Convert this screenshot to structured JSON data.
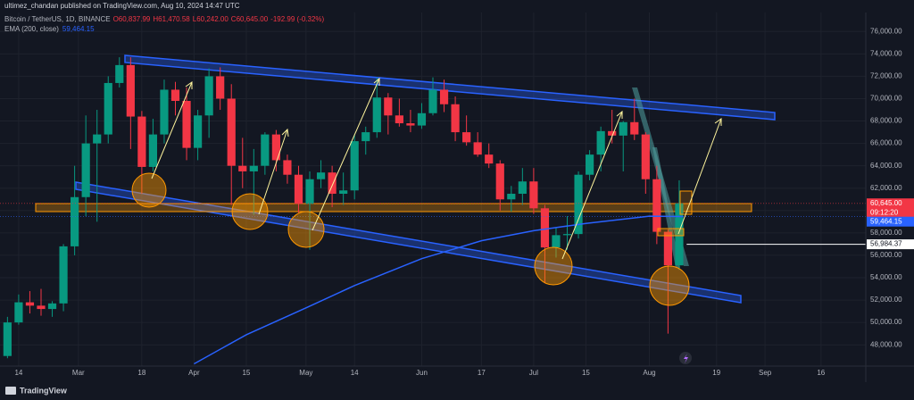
{
  "header": "ultimez_chandan published on TradingView.com, Aug 10, 2024 14:47 UTC",
  "chart_data": {
    "type": "candlestick",
    "legend": {
      "symbol": "Bitcoin / TetherUS, 1D, BINANCE",
      "ohlc": [
        "O60,837.99",
        "H61,470.58",
        "L60,242.00",
        "C60,645.00",
        "-192.99 (-0.32%)"
      ]
    },
    "x": [
      "Feb 10",
      "Feb 13",
      "Feb 16",
      "Feb 19",
      "Feb 22",
      "Feb 25",
      "Feb 28",
      "Mar 2",
      "Mar 5",
      "Mar 8",
      "Mar 11",
      "Mar 14",
      "Mar 17",
      "Mar 20",
      "Mar 23",
      "Mar 26",
      "Mar 29",
      "Apr 1",
      "Apr 4",
      "Apr 7",
      "Apr 10",
      "Apr 13",
      "Apr 16",
      "Apr 19",
      "Apr 22",
      "Apr 25",
      "Apr 28",
      "May 1",
      "May 4",
      "May 7",
      "May 10",
      "May 13",
      "May 16",
      "May 19",
      "May 22",
      "May 25",
      "May 28",
      "May 31",
      "Jun 3",
      "Jun 6",
      "Jun 9",
      "Jun 12",
      "Jun 15",
      "Jun 18",
      "Jun 21",
      "Jun 24",
      "Jun 27",
      "Jun 30",
      "Jul 3",
      "Jul 6",
      "Jul 9",
      "Jul 12",
      "Jul 15",
      "Jul 18",
      "Jul 21",
      "Jul 24",
      "Jul 27",
      "Jul 30",
      "Aug 2",
      "Aug 5",
      "Aug 8"
    ],
    "open": [
      47000,
      50000,
      51800,
      51500,
      51200,
      51700,
      56800,
      61200,
      66000,
      66800,
      71400,
      73000,
      68400,
      63900,
      66800,
      70800,
      69800,
      65600,
      68500,
      72000,
      70000,
      64000,
      63500,
      64000,
      66800,
      64500,
      63200,
      60600,
      62800,
      63400,
      61500,
      61800,
      66200,
      67000,
      70100,
      68500,
      67800,
      67600,
      68700,
      70800,
      69500,
      67000,
      66100,
      65000,
      64200,
      61000,
      61500,
      62600,
      60200,
      56700,
      57800,
      57900,
      63200,
      65000,
      67100,
      66700,
      67900,
      66800,
      62800,
      58100,
      55100
    ],
    "high": [
      50500,
      52500,
      52800,
      53000,
      51900,
      57000,
      64000,
      68500,
      69000,
      72000,
      73700,
      73700,
      68900,
      68200,
      71700,
      71500,
      71000,
      69000,
      72700,
      72800,
      71300,
      66500,
      65500,
      67000,
      67200,
      65000,
      64000,
      63500,
      64500,
      64000,
      63400,
      66800,
      67500,
      71900,
      70500,
      70000,
      69000,
      69600,
      71900,
      71700,
      70200,
      68500,
      67000,
      66000,
      64500,
      62200,
      63800,
      63800,
      60500,
      58500,
      59500,
      63500,
      65400,
      67500,
      69000,
      68000,
      70000,
      67000,
      64000,
      58300,
      62700
    ],
    "low": [
      46800,
      49800,
      50800,
      50600,
      50500,
      51000,
      56000,
      59500,
      59000,
      66000,
      71000,
      65500,
      61500,
      63500,
      66000,
      68500,
      64500,
      64500,
      66500,
      69000,
      60500,
      62000,
      59600,
      63200,
      63500,
      62400,
      59800,
      56500,
      62000,
      60300,
      60500,
      61000,
      65000,
      66500,
      66800,
      67500,
      67000,
      67300,
      68500,
      68800,
      66200,
      65800,
      64800,
      63800,
      60000,
      59900,
      60500,
      59700,
      53500,
      55800,
      56500,
      57500,
      62700,
      63500,
      66000,
      63500,
      66300,
      61500,
      57000,
      49000,
      54700
    ],
    "close": [
      50000,
      51800,
      51500,
      51200,
      51700,
      56800,
      61200,
      66000,
      66800,
      71400,
      73000,
      68400,
      63900,
      66800,
      70800,
      69800,
      65600,
      68500,
      72000,
      70000,
      64000,
      63500,
      64000,
      66800,
      64500,
      63200,
      60600,
      62800,
      63400,
      61500,
      61800,
      66200,
      67000,
      70100,
      68500,
      67800,
      67600,
      68700,
      70800,
      69500,
      67000,
      66100,
      65000,
      64200,
      61000,
      61500,
      62600,
      60200,
      56700,
      57800,
      57900,
      63200,
      65000,
      67100,
      66700,
      67900,
      66800,
      62800,
      58100,
      55100,
      60645
    ],
    "up_color": "#089981",
    "down_color": "#f23645",
    "ema": {
      "name": "EMA (200, close)",
      "color": "#2962ff",
      "x": [
        "Apr 1",
        "Apr 15",
        "May 1",
        "May 14",
        "Jun 1",
        "Jun 17",
        "Jul 1",
        "Jul 15",
        "Aug 1",
        "Aug 10"
      ],
      "values": [
        46300,
        48900,
        51300,
        53300,
        55700,
        57300,
        58200,
        58850,
        59500,
        59464.15
      ]
    },
    "xlim": [
      "Feb 9",
      "Sep 28"
    ],
    "xticks": [
      {
        "value": "Feb 14",
        "label": "14"
      },
      {
        "value": "Mar 1",
        "label": "Mar"
      },
      {
        "value": "Mar 18",
        "label": "18"
      },
      {
        "value": "Apr 1",
        "label": "Apr"
      },
      {
        "value": "Apr 15",
        "label": "15"
      },
      {
        "value": "May 1",
        "label": "May"
      },
      {
        "value": "May 14",
        "label": "14"
      },
      {
        "value": "Jun 1",
        "label": "Jun"
      },
      {
        "value": "Jun 17",
        "label": "17"
      },
      {
        "value": "Jul 1",
        "label": "Jul"
      },
      {
        "value": "Jul 15",
        "label": "15"
      },
      {
        "value": "Aug 1",
        "label": "Aug"
      },
      {
        "value": "Aug 19",
        "label": "19"
      },
      {
        "value": "Sep 1",
        "label": "Sep"
      },
      {
        "value": "Sep 16",
        "label": "16"
      }
    ],
    "ylim": [
      46100,
      77700
    ],
    "yticks": [
      {
        "value": 48000,
        "label": "48,000.00"
      },
      {
        "value": 50000,
        "label": "50,000.00"
      },
      {
        "value": 52000,
        "label": "52,000.00"
      },
      {
        "value": 54000,
        "label": "54,000.00"
      },
      {
        "value": 56000,
        "label": "56,000.00"
      },
      {
        "value": 58000,
        "label": "58,000.00"
      },
      {
        "value": 60000,
        "label": "60,000.00"
      },
      {
        "value": 62000,
        "label": "62,000.00"
      },
      {
        "value": 64000,
        "label": "64,000.00"
      },
      {
        "value": 66000,
        "label": "66,000.00"
      },
      {
        "value": 68000,
        "label": "68,000.00"
      },
      {
        "value": 70000,
        "label": "70,000.00"
      },
      {
        "value": 72000,
        "label": "72,000.00"
      },
      {
        "value": 74000,
        "label": "74,000.00"
      },
      {
        "value": 76000,
        "label": "76,000.00"
      }
    ],
    "grid": true,
    "price_labels": [
      {
        "value": 60645,
        "label": "60,645.00",
        "color": "#f23645"
      },
      {
        "value": 59464.15,
        "label": "59,464.15",
        "color": "#2962ff"
      },
      {
        "value": 56984.37,
        "label": "56,984.37",
        "color": "#ffffff"
      }
    ],
    "countdown": "09:12:20"
  },
  "footer": "TradingView"
}
